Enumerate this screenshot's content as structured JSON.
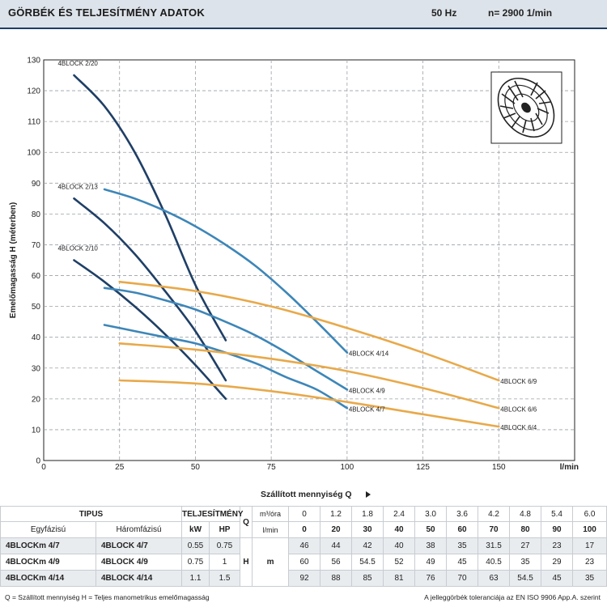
{
  "header": {
    "title": "GÖRBÉK ÉS TELJESÍTMÉNY ADATOK",
    "frequency": "50 Hz",
    "speed": "n= 2900  1/min"
  },
  "colors": {
    "dark_curve": "#1f3f66",
    "mid_curve": "#3d86b8",
    "orange_curve": "#e8a94a",
    "grid": "#9aa0a6"
  },
  "chart_data": {
    "type": "line",
    "xlabel": "Szállított mennyiség  Q",
    "x_unit": "l/min",
    "ylabel": "Emelőmagasság  H  (méterben)",
    "xlim": [
      0,
      175
    ],
    "ylim": [
      0,
      130
    ],
    "x_ticks": [
      0,
      25,
      50,
      75,
      100,
      125,
      150
    ],
    "y_ticks": [
      0,
      10,
      20,
      30,
      40,
      50,
      60,
      70,
      80,
      90,
      100,
      110,
      120,
      130
    ],
    "series": [
      {
        "name": "4BLOCK 2/20",
        "color": "dark",
        "x": [
          10,
          20,
          30,
          40,
          50,
          60
        ],
        "y": [
          125,
          115,
          100,
          80,
          57,
          39
        ]
      },
      {
        "name": "4BLOCK 2/13",
        "color": "dark",
        "x": [
          10,
          20,
          30,
          40,
          50,
          60
        ],
        "y": [
          85,
          77,
          67,
          55,
          42,
          26
        ]
      },
      {
        "name": "4BLOCK 2/10",
        "color": "dark",
        "x": [
          10,
          20,
          30,
          40,
          50,
          60
        ],
        "y": [
          65,
          58,
          50,
          41,
          31,
          20
        ]
      },
      {
        "name": "4BLOCK 4/14",
        "color": "mid",
        "x": [
          20,
          30,
          40,
          50,
          60,
          70,
          80,
          90,
          100
        ],
        "y": [
          88,
          85,
          81,
          76,
          70,
          63,
          54.5,
          45,
          35
        ]
      },
      {
        "name": "4BLOCK 4/9",
        "color": "mid",
        "x": [
          20,
          30,
          40,
          50,
          60,
          70,
          80,
          90,
          100
        ],
        "y": [
          56,
          54.5,
          52,
          49,
          45,
          40.5,
          35,
          29,
          23
        ]
      },
      {
        "name": "4BLOCK 4/7",
        "color": "mid",
        "x": [
          20,
          30,
          40,
          50,
          60,
          70,
          80,
          90,
          100
        ],
        "y": [
          44,
          42,
          40,
          38,
          35,
          31.5,
          27,
          23,
          17
        ]
      },
      {
        "name": "4BLOCK 6/9",
        "color": "orange",
        "x": [
          25,
          50,
          75,
          100,
          125,
          150
        ],
        "y": [
          58,
          55,
          50,
          43,
          35,
          26
        ]
      },
      {
        "name": "4BLOCK 6/6",
        "color": "orange",
        "x": [
          25,
          50,
          75,
          100,
          125,
          150
        ],
        "y": [
          38,
          36,
          33,
          29,
          23.5,
          17
        ]
      },
      {
        "name": "4BLOCK 6/4",
        "color": "orange",
        "x": [
          25,
          50,
          75,
          100,
          125,
          150
        ],
        "y": [
          26,
          25,
          22.5,
          19,
          15,
          11
        ]
      }
    ]
  },
  "table": {
    "tipus_label": "TIPUS",
    "power_label": "TELJESÍTMÉNY",
    "q_label": "Q",
    "q_unit_m3": "m³/óra",
    "q_unit_lmin": "l/min",
    "egyfazisu": "Egyfázisú",
    "haromfazisu": "Háromfázisú",
    "kw": "kW",
    "hp": "HP",
    "h_label": "H",
    "h_unit": "m",
    "q_m3h": [
      "0",
      "1.2",
      "1.8",
      "2.4",
      "3.0",
      "3.6",
      "4.2",
      "4.8",
      "5.4",
      "6.0"
    ],
    "q_lmin": [
      "0",
      "20",
      "30",
      "40",
      "50",
      "60",
      "70",
      "80",
      "90",
      "100"
    ],
    "rows": [
      {
        "single": "4BLOCKm 4/7",
        "three": "4BLOCK 4/7",
        "kw": "0.55",
        "hp": "0.75",
        "h": [
          "46",
          "44",
          "42",
          "40",
          "38",
          "35",
          "31.5",
          "27",
          "23",
          "17"
        ]
      },
      {
        "single": "4BLOCKm 4/9",
        "three": "4BLOCK 4/9",
        "kw": "0.75",
        "hp": "1",
        "h": [
          "60",
          "56",
          "54.5",
          "52",
          "49",
          "45",
          "40.5",
          "35",
          "29",
          "23"
        ]
      },
      {
        "single": "4BLOCKm 4/14",
        "three": "4BLOCK 4/14",
        "kw": "1.1",
        "hp": "1.5",
        "h": [
          "92",
          "88",
          "85",
          "81",
          "76",
          "70",
          "63",
          "54.5",
          "45",
          "35"
        ]
      }
    ]
  },
  "footer": {
    "left": "Q = Szállított mennyiség  H = Teljes manometrikus emelőmagasság",
    "right": "A jelleggörbék toleranciája az EN ISO 9906 App.A. szerint"
  }
}
